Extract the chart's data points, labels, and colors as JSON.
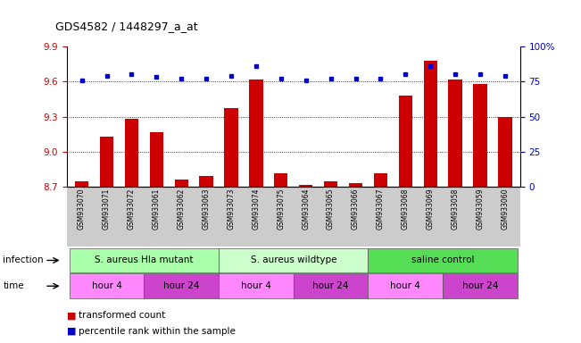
{
  "title": "GDS4582 / 1448297_a_at",
  "samples": [
    "GSM933070",
    "GSM933071",
    "GSM933072",
    "GSM933061",
    "GSM933062",
    "GSM933063",
    "GSM933073",
    "GSM933074",
    "GSM933075",
    "GSM933064",
    "GSM933065",
    "GSM933066",
    "GSM933067",
    "GSM933068",
    "GSM933069",
    "GSM933058",
    "GSM933059",
    "GSM933060"
  ],
  "bar_values": [
    8.75,
    9.13,
    9.28,
    9.17,
    8.76,
    8.79,
    9.37,
    9.62,
    8.82,
    8.72,
    8.75,
    8.73,
    8.82,
    9.48,
    9.78,
    9.62,
    9.58,
    9.3
  ],
  "dot_values": [
    76,
    79,
    80,
    78,
    77,
    77,
    79,
    86,
    77,
    76,
    77,
    77,
    77,
    80,
    86,
    80,
    80,
    79
  ],
  "ylim_left": [
    8.7,
    9.9
  ],
  "ylim_right": [
    0,
    100
  ],
  "yticks_left": [
    8.7,
    9.0,
    9.3,
    9.6,
    9.9
  ],
  "yticks_right": [
    0,
    25,
    50,
    75,
    100
  ],
  "bar_color": "#cc0000",
  "dot_color": "#0000cc",
  "bar_bottom": 8.7,
  "groups": [
    {
      "label": "S. aureus Hla mutant",
      "start": 0,
      "end": 6,
      "color": "#aaffaa"
    },
    {
      "label": "S. aureus wildtype",
      "start": 6,
      "end": 12,
      "color": "#ccffcc"
    },
    {
      "label": "saline control",
      "start": 12,
      "end": 18,
      "color": "#55dd55"
    }
  ],
  "time_groups": [
    {
      "label": "hour 4",
      "start": 0,
      "end": 3,
      "color": "#ff88ff"
    },
    {
      "label": "hour 24",
      "start": 3,
      "end": 6,
      "color": "#cc44cc"
    },
    {
      "label": "hour 4",
      "start": 6,
      "end": 9,
      "color": "#ff88ff"
    },
    {
      "label": "hour 24",
      "start": 9,
      "end": 12,
      "color": "#cc44cc"
    },
    {
      "label": "hour 4",
      "start": 12,
      "end": 15,
      "color": "#ff88ff"
    },
    {
      "label": "hour 24",
      "start": 15,
      "end": 18,
      "color": "#cc44cc"
    }
  ],
  "infection_label": "infection",
  "time_label": "time",
  "legend_bar_label": "transformed count",
  "legend_dot_label": "percentile rank within the sample",
  "tick_bg_color": "#cccccc"
}
